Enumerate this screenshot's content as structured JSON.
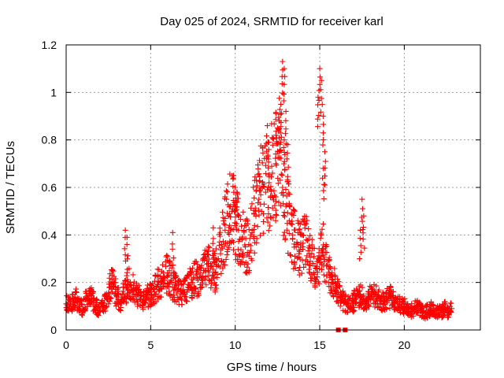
{
  "chart_data": {
    "type": "scatter",
    "title": "Day 025 of 2024, SRMTID for receiver karl",
    "xlabel": "GPS time / hours",
    "ylabel": "SRMTID / TECUs",
    "xlim": [
      0,
      24.5
    ],
    "ylim": [
      0,
      1.2
    ],
    "x_ticks": [
      0,
      5,
      10,
      15,
      20
    ],
    "x_tick_labels": [
      "0",
      "5",
      "10",
      "15",
      "20"
    ],
    "y_ticks": [
      0,
      0.2,
      0.4,
      0.6,
      0.8,
      1.0,
      1.2
    ],
    "y_tick_labels": [
      "0",
      "0.2",
      "0.4",
      "0.6",
      "0.8",
      "1",
      "1.2"
    ],
    "grid": true,
    "marker": "plus",
    "color": "#ff0000",
    "series": [
      {
        "name": "SRMTID",
        "x": [
          0.0,
          0.2,
          0.4,
          0.6,
          0.8,
          1.0,
          1.2,
          1.4,
          1.6,
          1.8,
          2.0,
          2.2,
          2.4,
          2.6,
          2.8,
          3.0,
          3.2,
          3.4,
          3.6,
          3.8,
          4.0,
          4.2,
          4.4,
          4.6,
          4.8,
          5.0,
          5.2,
          5.4,
          5.6,
          5.8,
          6.0,
          6.2,
          6.4,
          6.6,
          6.8,
          7.0,
          7.2,
          7.4,
          7.6,
          7.8,
          8.0,
          8.2,
          8.4,
          8.6,
          8.8,
          9.0,
          9.2,
          9.4,
          9.6,
          9.8,
          10.0,
          10.2,
          10.4,
          10.6,
          10.8,
          11.0,
          11.2,
          11.4,
          11.6,
          11.8,
          12.0,
          12.2,
          12.4,
          12.6,
          12.8,
          13.0,
          13.2,
          13.4,
          13.6,
          13.8,
          14.0,
          14.2,
          14.4,
          14.6,
          14.8,
          15.0,
          15.2,
          15.4,
          15.6,
          15.8,
          16.0,
          16.2,
          16.4,
          16.6,
          16.8,
          17.0,
          17.2,
          17.4,
          17.6,
          17.8,
          18.0,
          18.2,
          18.4,
          18.6,
          18.8,
          19.0,
          19.2,
          19.4,
          19.6,
          19.8,
          20.0,
          20.2,
          20.4,
          20.6,
          20.8,
          21.0,
          21.2,
          21.4,
          21.6,
          21.8,
          22.0,
          22.2,
          22.4,
          22.6,
          22.8
        ],
        "y": [
          0.11,
          0.1,
          0.12,
          0.13,
          0.1,
          0.09,
          0.14,
          0.15,
          0.12,
          0.1,
          0.08,
          0.1,
          0.13,
          0.18,
          0.2,
          0.14,
          0.12,
          0.15,
          0.18,
          0.2,
          0.17,
          0.15,
          0.13,
          0.12,
          0.14,
          0.15,
          0.17,
          0.19,
          0.2,
          0.22,
          0.24,
          0.21,
          0.18,
          0.17,
          0.15,
          0.16,
          0.18,
          0.2,
          0.22,
          0.21,
          0.22,
          0.25,
          0.28,
          0.27,
          0.24,
          0.3,
          0.36,
          0.42,
          0.48,
          0.5,
          0.45,
          0.42,
          0.38,
          0.35,
          0.36,
          0.42,
          0.5,
          0.55,
          0.6,
          0.58,
          0.62,
          0.66,
          0.7,
          0.75,
          0.6,
          0.52,
          0.46,
          0.4,
          0.36,
          0.33,
          0.35,
          0.38,
          0.32,
          0.28,
          0.26,
          0.3,
          0.34,
          0.27,
          0.22,
          0.2,
          0.18,
          0.14,
          0.12,
          0.11,
          0.1,
          0.12,
          0.14,
          0.15,
          0.13,
          0.12,
          0.14,
          0.15,
          0.14,
          0.13,
          0.12,
          0.13,
          0.14,
          0.12,
          0.11,
          0.1,
          0.1,
          0.09,
          0.08,
          0.09,
          0.1,
          0.08,
          0.07,
          0.08,
          0.09,
          0.08,
          0.07,
          0.08,
          0.09,
          0.08,
          0.09
        ]
      }
    ],
    "peaks": {
      "x": [
        12.8,
        12.9,
        12.7,
        13.0,
        12.6,
        12.5,
        12.4,
        15.0,
        15.1,
        14.9,
        15.2,
        12.9,
        13.1,
        11.9,
        12.0,
        17.5,
        17.6,
        17.4,
        15.3,
        15.2,
        3.5,
        3.6,
        6.3,
        8.7,
        9.9,
        10.0,
        10.1
      ],
      "y": [
        1.13,
        1.1,
        0.95,
        0.92,
        0.88,
        0.85,
        0.82,
        1.1,
        1.05,
        0.98,
        0.9,
        0.8,
        0.78,
        0.86,
        0.79,
        0.55,
        0.48,
        0.42,
        0.75,
        0.68,
        0.42,
        0.39,
        0.41,
        0.43,
        0.65,
        0.6,
        0.58
      ]
    },
    "zero_markers": {
      "x": [
        16.1,
        16.5
      ],
      "y": [
        0,
        0
      ]
    }
  }
}
